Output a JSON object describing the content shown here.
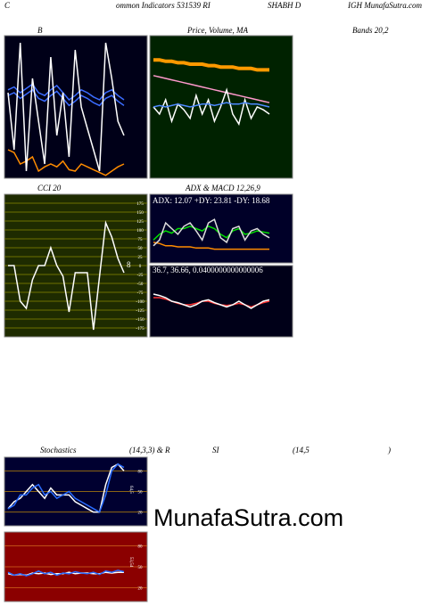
{
  "header": {
    "pieces": [
      "C",
      "ommon  Indicators 531539 RI",
      "SHABH D",
      "IGH MunafaSutra.com"
    ]
  },
  "labels": {
    "b": "B",
    "price": "Price, Volume, MA",
    "bands": "Bands 20,2",
    "cci": "CCI 20",
    "adx_macd": "ADX  & MACD 12,26,9",
    "adx_values": "ADX: 12.07  +DY: 23.81  -DY: 18.68",
    "macd_values": "36.7,  36.66,  0.0400000000000006",
    "stoch": "Stochastics",
    "stoch_params": "(14,3,3) & R",
    "si": "SI",
    "rsi_params": "(14,5",
    "close": ")",
    "cci_last": "8",
    "stoch_last": "64,5",
    "rsi_last": "53,54"
  },
  "watermark": "MunafaSutra.com",
  "panels": [
    {
      "ylim": [
        0,
        100
      ],
      "series": [
        {
          "color": "#ff8c00",
          "values": [
            20,
            18,
            10,
            12,
            15,
            5,
            8,
            10,
            8,
            12,
            6,
            5,
            10,
            8,
            6,
            4,
            2,
            5,
            8,
            10
          ]
        },
        {
          "color": "#3b6cff",
          "values": [
            62,
            64,
            60,
            63,
            66,
            60,
            58,
            62,
            65,
            60,
            55,
            58,
            62,
            60,
            57,
            55,
            60,
            62,
            58,
            55
          ]
        },
        {
          "color": "#3b6cff",
          "values": [
            58,
            60,
            56,
            59,
            62,
            56,
            54,
            58,
            61,
            56,
            51,
            54,
            58,
            56,
            53,
            51,
            56,
            58,
            54,
            51
          ]
        },
        {
          "color": "#ffffff",
          "values": [
            60,
            20,
            95,
            5,
            70,
            40,
            10,
            85,
            30,
            60,
            15,
            90,
            50,
            35,
            20,
            5,
            95,
            70,
            40,
            30
          ]
        }
      ]
    },
    {
      "ylim": [
        0,
        100
      ],
      "series": [
        {
          "color": "#ff9900",
          "values": [
            83,
            83,
            82,
            82,
            81,
            81,
            80,
            80,
            80,
            79,
            79,
            78,
            78,
            78,
            77,
            77,
            77,
            76,
            76,
            76
          ]
        },
        {
          "color": "#ff99cc",
          "values": [
            72,
            71,
            70,
            69,
            68,
            67,
            66,
            65,
            64,
            63,
            62,
            61,
            60,
            59,
            58,
            57,
            56,
            55,
            54,
            53
          ]
        },
        {
          "color": "#ffffff",
          "values": [
            50,
            45,
            55,
            40,
            52,
            48,
            42,
            58,
            45,
            55,
            40,
            50,
            62,
            45,
            38,
            55,
            42,
            50,
            48,
            45
          ]
        },
        {
          "color": "#4d88ff",
          "values": [
            50,
            51,
            50,
            51,
            52,
            51,
            50,
            51,
            52,
            52,
            51,
            52,
            53,
            52,
            52,
            53,
            52,
            52,
            51,
            50
          ]
        }
      ]
    },
    {
      "ylim": [
        -200,
        200
      ],
      "yticks": [
        175,
        150,
        125,
        100,
        75,
        50,
        25,
        0,
        -25,
        -50,
        -75,
        -100,
        -125,
        -150,
        -175
      ],
      "series": [
        {
          "color": "#ffffff",
          "values": [
            0,
            0,
            -100,
            -120,
            -40,
            0,
            0,
            50,
            0,
            -30,
            -130,
            -20,
            -20,
            -20,
            -180,
            -30,
            120,
            80,
            20,
            -20
          ]
        }
      ]
    },
    {
      "ylim": [
        0,
        60
      ],
      "series": [
        {
          "color": "#ff8c00",
          "values": [
            18,
            17,
            15,
            15,
            14,
            14,
            14,
            13,
            13,
            13,
            12,
            12,
            12,
            12,
            12,
            12,
            12,
            12,
            12,
            12
          ]
        },
        {
          "color": "#00dd00",
          "values": [
            20,
            25,
            28,
            26,
            30,
            30,
            32,
            30,
            28,
            32,
            30,
            25,
            22,
            28,
            30,
            25,
            26,
            28,
            27,
            26
          ]
        },
        {
          "color": "#dddddd",
          "values": [
            15,
            20,
            35,
            30,
            25,
            32,
            35,
            28,
            20,
            35,
            38,
            22,
            18,
            30,
            32,
            20,
            28,
            30,
            25,
            22
          ]
        }
      ]
    },
    {
      "ylim": [
        -50,
        50
      ],
      "series": [
        {
          "color": "#ff3333",
          "values": [
            5,
            5,
            3,
            0,
            -3,
            -5,
            -5,
            -3,
            0,
            0,
            -3,
            -5,
            -6,
            -5,
            -3,
            -5,
            -8,
            -5,
            -2,
            0
          ]
        },
        {
          "color": "#ffffff",
          "values": [
            10,
            8,
            5,
            0,
            -2,
            -5,
            -8,
            -5,
            0,
            2,
            -2,
            -5,
            -8,
            -5,
            0,
            -5,
            -10,
            -5,
            0,
            2
          ]
        }
      ]
    },
    {
      "ylim": [
        0,
        100
      ],
      "yticks": [
        80,
        50,
        20
      ],
      "series": [
        {
          "color": "#ffffff",
          "values": [
            25,
            35,
            40,
            50,
            60,
            50,
            40,
            55,
            45,
            45,
            45,
            35,
            30,
            25,
            20,
            20,
            60,
            85,
            90,
            80
          ]
        },
        {
          "color": "#2a6cff",
          "values": [
            25,
            30,
            45,
            45,
            55,
            60,
            45,
            50,
            40,
            45,
            50,
            40,
            35,
            30,
            25,
            20,
            45,
            80,
            90,
            85
          ]
        }
      ]
    },
    {
      "ylim": [
        0,
        100
      ],
      "yticks": [
        80,
        50,
        20
      ],
      "series": [
        {
          "color": "#ffffff",
          "values": [
            40,
            38,
            39,
            38,
            41,
            40,
            41,
            39,
            40,
            40,
            42,
            40,
            41,
            41,
            40,
            40,
            42,
            41,
            42,
            42
          ]
        },
        {
          "color": "#2a6cff",
          "values": [
            42,
            38,
            40,
            37,
            40,
            44,
            40,
            42,
            38,
            41,
            40,
            43,
            41,
            40,
            42,
            39,
            44,
            42,
            45,
            43
          ]
        }
      ]
    }
  ]
}
